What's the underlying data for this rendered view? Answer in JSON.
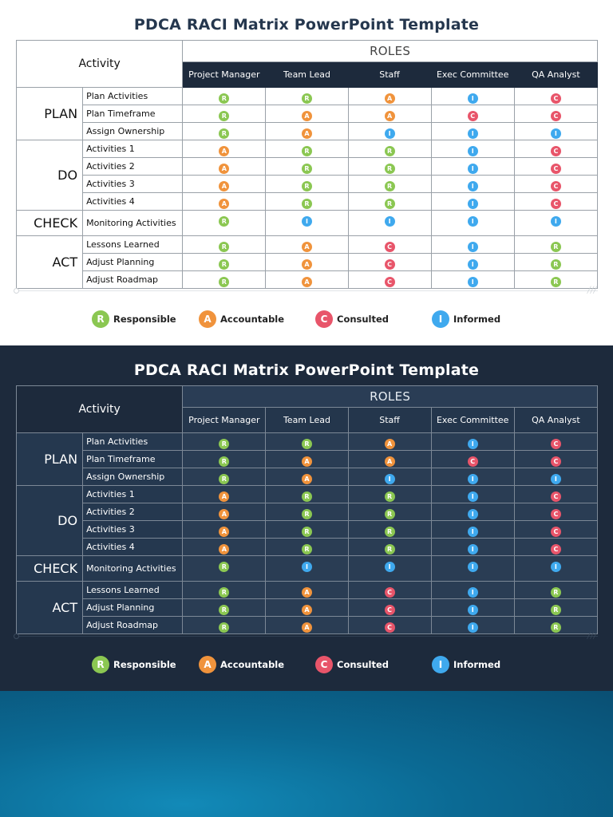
{
  "title": "PDCA RACI Matrix PowerPoint Template",
  "table": {
    "activity_header": "Activity",
    "roles_header": "ROLES",
    "roles": [
      "Project Manager",
      "Team Lead",
      "Staff",
      "Exec Committee",
      "QA Analyst"
    ],
    "phases": [
      {
        "name": "PLAN",
        "rows": [
          {
            "activity": "Plan Activities",
            "values": [
              "R",
              "R",
              "A",
              "I",
              "C"
            ]
          },
          {
            "activity": "Plan Timeframe",
            "values": [
              "R",
              "A",
              "A",
              "C",
              "C"
            ]
          },
          {
            "activity": "Assign Ownership",
            "values": [
              "R",
              "A",
              "I",
              "I",
              "I"
            ]
          }
        ]
      },
      {
        "name": "DO",
        "rows": [
          {
            "activity": "Activities 1",
            "values": [
              "A",
              "R",
              "R",
              "I",
              "C"
            ]
          },
          {
            "activity": "Activities 2",
            "values": [
              "A",
              "R",
              "R",
              "I",
              "C"
            ]
          },
          {
            "activity": "Activities 3",
            "values": [
              "A",
              "R",
              "R",
              "I",
              "C"
            ]
          },
          {
            "activity": "Activities 4",
            "values": [
              "A",
              "R",
              "R",
              "I",
              "C"
            ]
          }
        ]
      },
      {
        "name": "CHECK",
        "rows": [
          {
            "activity": "Monitoring Activities",
            "values": [
              "R",
              "I",
              "I",
              "I",
              "I"
            ]
          }
        ]
      },
      {
        "name": "ACT",
        "rows": [
          {
            "activity": "Lessons Learned",
            "values": [
              "R",
              "A",
              "C",
              "I",
              "R"
            ]
          },
          {
            "activity": "Adjust Planning",
            "values": [
              "R",
              "A",
              "C",
              "I",
              "R"
            ]
          },
          {
            "activity": "Adjust Roadmap",
            "values": [
              "R",
              "A",
              "C",
              "I",
              "R"
            ]
          }
        ]
      }
    ]
  },
  "legend": [
    {
      "letter": "R",
      "label": "Responsible"
    },
    {
      "letter": "A",
      "label": "Accountable"
    },
    {
      "letter": "C",
      "label": "Consulted"
    },
    {
      "letter": "I",
      "label": "Informed"
    }
  ],
  "colors": {
    "R": "#8bc752",
    "A": "#f0933c",
    "C": "#e8556a",
    "I": "#3fa9ee",
    "header_dark": "#1d2a3c",
    "title_light": "#25374e"
  },
  "scrollbar_icon": "resize-grip-icon"
}
